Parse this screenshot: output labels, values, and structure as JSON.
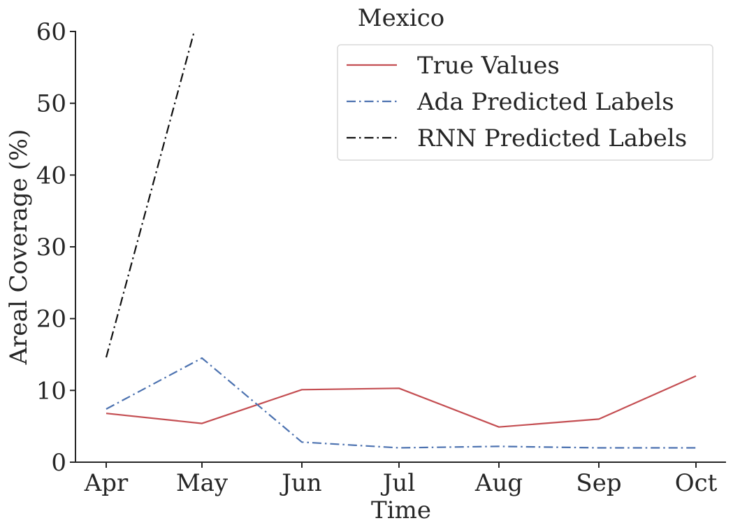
{
  "chart_data": {
    "type": "line",
    "title": "Mexico",
    "xlabel": "Time",
    "ylabel": "Areal Coverage (%)",
    "categories": [
      "Apr",
      "May",
      "Jun",
      "Jul",
      "Aug",
      "Sep",
      "Oct"
    ],
    "yticks": [
      0,
      10,
      20,
      30,
      40,
      50,
      60
    ],
    "ylim": [
      0,
      60
    ],
    "grid": false,
    "legend_position": "top-right",
    "series": [
      {
        "name": "True Values",
        "color": "#c44e52",
        "style": "solid",
        "values": [
          6.8,
          5.4,
          10.1,
          10.3,
          4.9,
          6.0,
          12.0
        ]
      },
      {
        "name": "Ada Predicted Labels",
        "color": "#4c72b0",
        "style": "dashdot",
        "values": [
          7.4,
          14.5,
          2.8,
          2.0,
          2.2,
          2.0,
          2.0
        ]
      },
      {
        "name": "RNN Predicted Labels",
        "color": "#111111",
        "style": "dashdot",
        "values": [
          14.6,
          64.0,
          null,
          null,
          null,
          null,
          null
        ]
      }
    ]
  }
}
